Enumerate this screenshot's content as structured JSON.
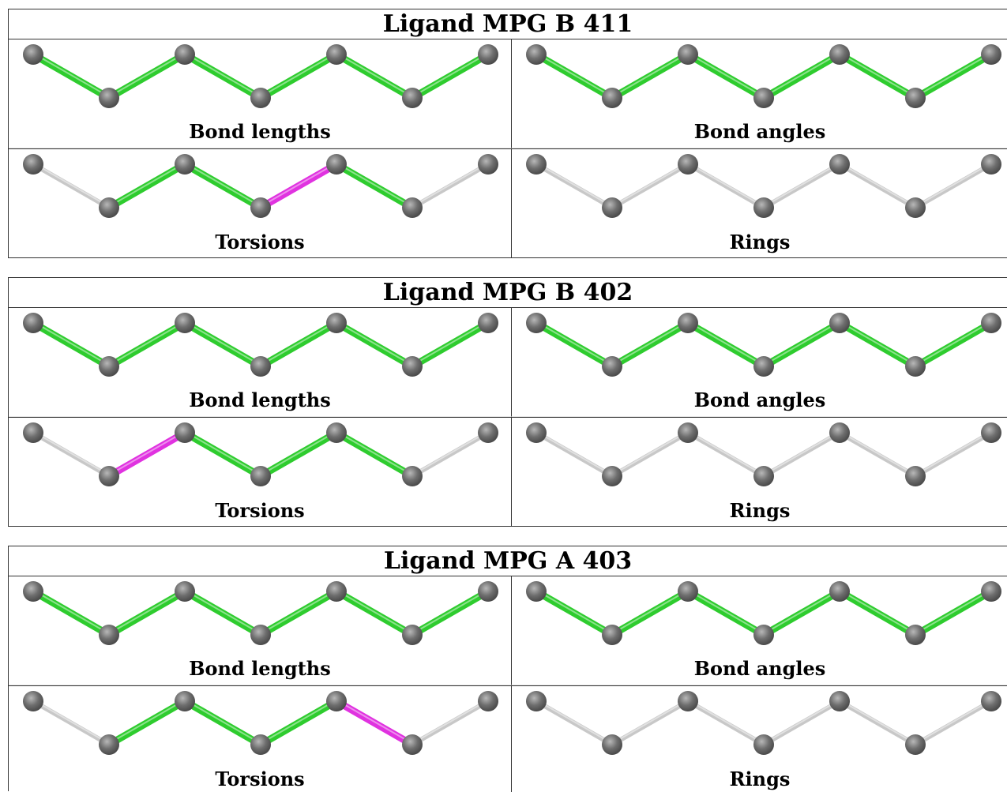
{
  "colors": {
    "ok": "#2ecc2e",
    "outlier": "#e032e0",
    "none": "#c8c8c8",
    "atom": "#6e6e6e"
  },
  "ligands": [
    {
      "title": "Ligand MPG B 411",
      "panels": [
        {
          "label": "Bond lengths",
          "bonds": [
            "ok",
            "ok",
            "ok",
            "ok",
            "ok",
            "ok"
          ]
        },
        {
          "label": "Bond angles",
          "bonds": [
            "ok",
            "ok",
            "ok",
            "ok",
            "ok",
            "ok"
          ]
        },
        {
          "label": "Torsions",
          "bonds": [
            "none",
            "ok",
            "ok",
            "outlier",
            "ok",
            "none"
          ]
        },
        {
          "label": "Rings",
          "bonds": [
            "none",
            "none",
            "none",
            "none",
            "none",
            "none"
          ]
        }
      ]
    },
    {
      "title": "Ligand MPG B 402",
      "panels": [
        {
          "label": "Bond lengths",
          "bonds": [
            "ok",
            "ok",
            "ok",
            "ok",
            "ok",
            "ok"
          ]
        },
        {
          "label": "Bond angles",
          "bonds": [
            "ok",
            "ok",
            "ok",
            "ok",
            "ok",
            "ok"
          ]
        },
        {
          "label": "Torsions",
          "bonds": [
            "none",
            "outlier",
            "ok",
            "ok",
            "ok",
            "none"
          ]
        },
        {
          "label": "Rings",
          "bonds": [
            "none",
            "none",
            "none",
            "none",
            "none",
            "none"
          ]
        }
      ]
    },
    {
      "title": "Ligand MPG A 403",
      "panels": [
        {
          "label": "Bond lengths",
          "bonds": [
            "ok",
            "ok",
            "ok",
            "ok",
            "ok",
            "ok"
          ]
        },
        {
          "label": "Bond angles",
          "bonds": [
            "ok",
            "ok",
            "ok",
            "ok",
            "ok",
            "ok"
          ]
        },
        {
          "label": "Torsions",
          "bonds": [
            "none",
            "ok",
            "ok",
            "ok",
            "outlier",
            "none"
          ]
        },
        {
          "label": "Rings",
          "bonds": [
            "none",
            "none",
            "none",
            "none",
            "none",
            "none"
          ]
        }
      ]
    }
  ]
}
